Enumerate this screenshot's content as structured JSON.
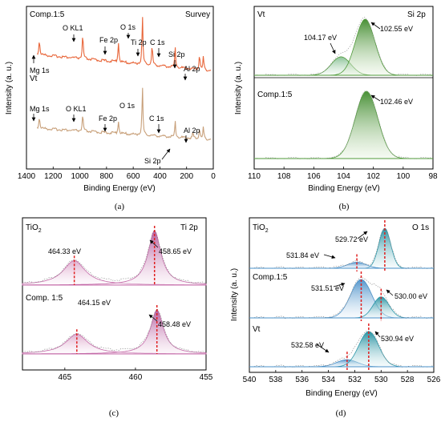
{
  "panels": {
    "a": {
      "caption": "(a)",
      "corner_label": "Survey",
      "ylabel": "Intensity (a. u.)",
      "xlabel": "Binding Energy (eV)",
      "xticks": [
        "1400",
        "1200",
        "1000",
        "800",
        "600",
        "400",
        "200",
        "0"
      ],
      "series_labels": [
        "Comp.1:5",
        "Vt"
      ],
      "top_annotations": [
        "Mg 1s",
        "O KL1",
        "Fe 2p",
        "O 1s",
        "Ti 2p",
        "C 1s",
        "Si 2p",
        "Al 2p"
      ],
      "bottom_annotations": [
        "Mg 1s",
        "O KL1",
        "Fe 2p",
        "O 1s",
        "C 1s",
        "Al 2p",
        "Si 2p"
      ]
    },
    "b": {
      "caption": "(b)",
      "corner_label": "Si 2p",
      "ylabel": "Intensity (a. u.)",
      "xlabel": "Binding Energy (eV)",
      "xticks": [
        "110",
        "108",
        "106",
        "104",
        "102",
        "100",
        "98"
      ],
      "series_labels": [
        "Vt",
        "Comp.1:5"
      ],
      "peak_labels": [
        "104.17 eV",
        "102.55 eV",
        "102.46 eV"
      ]
    },
    "c": {
      "caption": "(c)",
      "corner_label": "Ti 2p",
      "series_label_top": "TiO",
      "series_label_top_sub": "2",
      "series_label_bottom": "Comp. 1:5",
      "xticks": [
        "465",
        "460",
        "455"
      ],
      "peak_labels": [
        "464.33 eV",
        "458.65 eV",
        "464.15 eV",
        "458.48 eV"
      ]
    },
    "d": {
      "caption": "(d)",
      "corner_label": "O 1s",
      "ylabel": "Intensity (a. u.)",
      "xlabel": "Binding Energy (eV)",
      "series_label_top": "TiO",
      "series_label_top_sub": "2",
      "series_labels": [
        "Comp.1:5",
        "Vt"
      ],
      "xticks": [
        "540",
        "538",
        "536",
        "534",
        "532",
        "530",
        "528",
        "526"
      ],
      "peak_labels": [
        "529.72 eV",
        "531.84 eV",
        "531.51 eV",
        "530.00 eV",
        "532.58 eV",
        "530.94 eV"
      ]
    }
  },
  "colors": {
    "survey_top": "#e8663a",
    "survey_bottom": "#c8a07a",
    "si_green": "#4f9a3a",
    "ti_pink": "#c46aa8",
    "o_teal": "#2a96a8",
    "o_blue": "#4a90c8",
    "marker_red": "#e02020"
  },
  "chart_data": [
    {
      "type": "line",
      "panel": "a",
      "corner_label": "Survey",
      "xlabel": "Binding Energy (eV)",
      "ylabel": "Intensity (a. u.)",
      "xlim": [
        1400,
        0
      ],
      "series": [
        {
          "name": "Comp.1:5",
          "x": [
            1303,
            978,
            711,
            531,
            458,
            285,
            103,
            74
          ],
          "y": [
            0.58,
            0.92,
            0.78,
            1.0,
            0.76,
            0.72,
            0.56,
            0.5
          ]
        },
        {
          "name": "Vt",
          "x": [
            1303,
            978,
            711,
            531,
            285,
            153,
            103,
            74
          ],
          "y": [
            0.45,
            0.62,
            0.5,
            1.0,
            0.58,
            0.2,
            0.4,
            0.45
          ]
        }
      ]
    },
    {
      "type": "line",
      "panel": "b",
      "corner_label": "Si 2p",
      "xlabel": "Binding Energy (eV)",
      "ylabel": "Intensity (a. u.)",
      "xlim": [
        110,
        98
      ],
      "series": [
        {
          "name": "Vt",
          "peaks_eV": [
            104.17,
            102.55
          ],
          "peak_heights": [
            0.33,
            1.0
          ]
        },
        {
          "name": "Comp.1:5",
          "peaks_eV": [
            102.46
          ],
          "peak_heights": [
            1.0
          ]
        }
      ]
    },
    {
      "type": "line",
      "panel": "c",
      "corner_label": "Ti 2p",
      "xlim": [
        468,
        455
      ],
      "series": [
        {
          "name": "TiO2",
          "peaks_eV": [
            464.33,
            458.65
          ],
          "peak_heights": [
            0.45,
            1.0
          ]
        },
        {
          "name": "Comp. 1:5",
          "peaks_eV": [
            464.15,
            458.48
          ],
          "peak_heights": [
            0.45,
            1.0
          ]
        }
      ]
    },
    {
      "type": "line",
      "panel": "d",
      "corner_label": "O 1s",
      "xlabel": "Binding Energy (eV)",
      "ylabel": "Intensity (a. u.)",
      "xlim": [
        540,
        526
      ],
      "series": [
        {
          "name": "TiO2",
          "peaks_eV": [
            529.72,
            531.84
          ],
          "peak_heights": [
            1.0,
            0.15
          ]
        },
        {
          "name": "Comp.1:5",
          "peaks_eV": [
            531.51,
            530.0
          ],
          "peak_heights": [
            1.0,
            0.55
          ]
        },
        {
          "name": "Vt",
          "peaks_eV": [
            532.58,
            530.94
          ],
          "peak_heights": [
            0.2,
            1.0
          ]
        }
      ]
    }
  ]
}
